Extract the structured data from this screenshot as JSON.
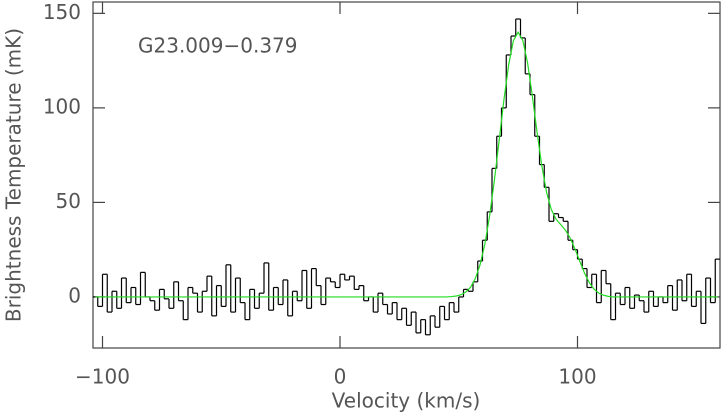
{
  "chart_data": {
    "type": "step",
    "x_label": "Velocity (km/s)",
    "y_label": "Brightness Temperature (mK)",
    "annotation": "G23.009−0.379",
    "xlim": [
      -104,
      160
    ],
    "ylim": [
      -27,
      156
    ],
    "xticks": [
      {
        "value": -100,
        "label": "−100"
      },
      0,
      100
    ],
    "yticks": [
      0,
      50,
      100,
      150
    ],
    "x": [
      -103,
      -101,
      -99,
      -97,
      -95,
      -93,
      -91,
      -89,
      -87,
      -85,
      -83,
      -81,
      -79,
      -77,
      -75,
      -73,
      -71,
      -69,
      -67,
      -65,
      -63,
      -61,
      -59,
      -57,
      -55,
      -53,
      -51,
      -49,
      -47,
      -45,
      -43,
      -41,
      -39,
      -37,
      -35,
      -33,
      -31,
      -29,
      -27,
      -25,
      -23,
      -21,
      -19,
      -17,
      -15,
      -13,
      -11,
      -9,
      -7,
      -5,
      -3,
      -1,
      1,
      3,
      5,
      7,
      9,
      11,
      13,
      15,
      17,
      19,
      21,
      23,
      25,
      27,
      29,
      31,
      33,
      35,
      37,
      39,
      41,
      43,
      45,
      47,
      49,
      51,
      53,
      55,
      57,
      59,
      61,
      63,
      65,
      67,
      69,
      71,
      73,
      75,
      77,
      79,
      81,
      83,
      85,
      87,
      89,
      91,
      93,
      95,
      97,
      99,
      101,
      103,
      105,
      107,
      109,
      111,
      113,
      115,
      117,
      119,
      121,
      123,
      125,
      127,
      129,
      131,
      133,
      135,
      137,
      139,
      141,
      143,
      145,
      147,
      149,
      151,
      153,
      155,
      157,
      159
    ],
    "series": [
      {
        "color": "#000000",
        "values": [
          0,
          -5,
          12,
          -8,
          3,
          -6,
          10,
          -3,
          5,
          -4,
          13,
          0,
          -2,
          -7,
          4,
          -1,
          -6,
          8,
          -2,
          -12,
          5,
          2,
          -8,
          3,
          11,
          -10,
          6,
          -5,
          17,
          -8,
          10,
          -3,
          -12,
          4,
          -6,
          2,
          18,
          -7,
          5,
          -4,
          9,
          -10,
          3,
          -2,
          14,
          -6,
          15,
          6,
          -4,
          10,
          8,
          5,
          12,
          9,
          11,
          4,
          6,
          -2,
          0,
          -8,
          2,
          -4,
          -9,
          -3,
          -12,
          -6,
          -15,
          -8,
          -19,
          -12,
          -20,
          -10,
          -16,
          -5,
          -12,
          -3,
          -8,
          0,
          4,
          3,
          8,
          19,
          30,
          45,
          68,
          85,
          100,
          128,
          138,
          147,
          137,
          118,
          107,
          85,
          70,
          58,
          40,
          44,
          42,
          40,
          30,
          25,
          20,
          15,
          5,
          12,
          -3,
          14,
          7,
          -12,
          2,
          -4,
          5,
          -6,
          1,
          -2,
          -8,
          3,
          -5,
          0,
          -3,
          6,
          -7,
          9,
          -2,
          12,
          -5,
          3,
          -14,
          10,
          -3,
          20
        ]
      },
      {
        "color": "#22dd22",
        "values": [
          0,
          0,
          0,
          0,
          0,
          0,
          0,
          0,
          0,
          0,
          0,
          0,
          0,
          0,
          0,
          0,
          0,
          0,
          0,
          0,
          0,
          0,
          0,
          0,
          0,
          0,
          0,
          0,
          0,
          0,
          0,
          0,
          0,
          0,
          0,
          0,
          0,
          0,
          0,
          0,
          0,
          0,
          0,
          0,
          0,
          0,
          0,
          0,
          0,
          0,
          0,
          0,
          0,
          0,
          0,
          0,
          0,
          0,
          0,
          0,
          0,
          0,
          0,
          0,
          0,
          0,
          0,
          0,
          0,
          0,
          0,
          0,
          0,
          0,
          0,
          0.2,
          0.5,
          1.2,
          2.6,
          5.2,
          9.8,
          17.1,
          28.0,
          42.9,
          61.6,
          82.7,
          104.1,
          122.7,
          135.5,
          140,
          135.5,
          123.6,
          106.1,
          86.8,
          69.1,
          55.2,
          46.2,
          41.1,
          38.2,
          35.2,
          31.0,
          25.2,
          18.7,
          12.5,
          7.5,
          4.1,
          2.0,
          0.9,
          0.3,
          0,
          0,
          0,
          0,
          0,
          0,
          0,
          0,
          0,
          0,
          0,
          0,
          0,
          0,
          0,
          0,
          0,
          0,
          0,
          0,
          0,
          0,
          0
        ]
      }
    ]
  }
}
